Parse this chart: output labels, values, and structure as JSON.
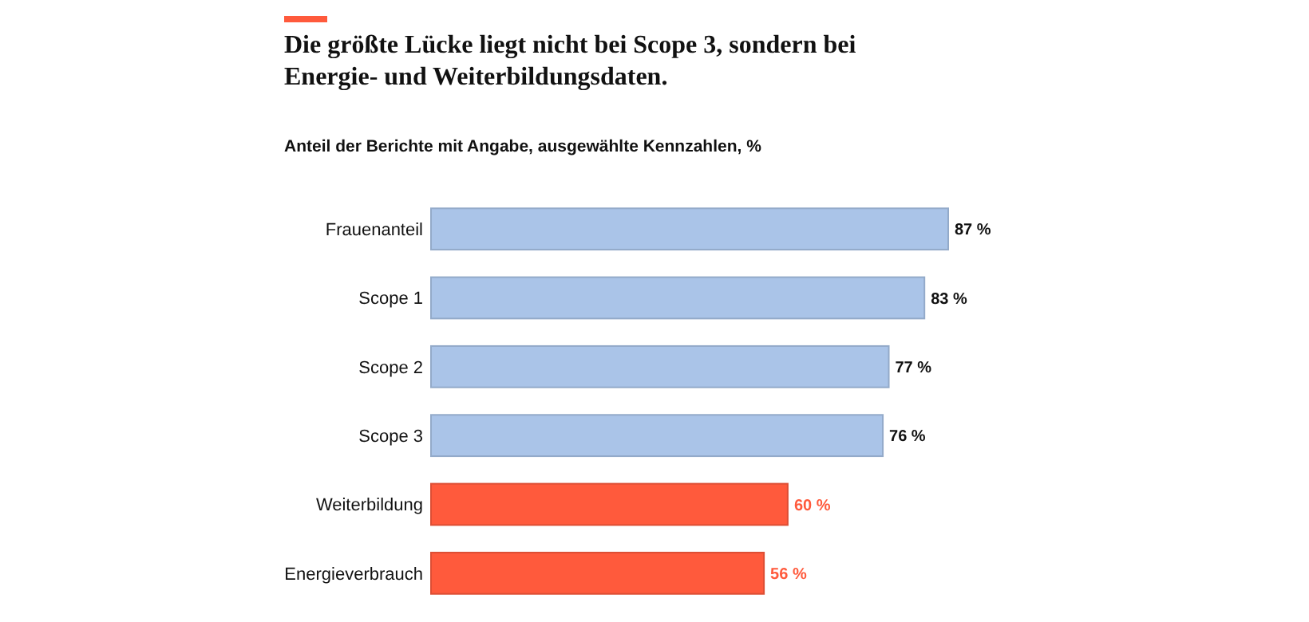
{
  "chart_data": {
    "type": "bar",
    "orientation": "horizontal",
    "title": "Die größte Lücke liegt nicht bei Scope 3, sondern bei Energie- und Weiterbildungsdaten.",
    "subtitle": "Anteil der Berichte mit Angabe, ausgewählte Kennzahlen, %",
    "categories": [
      "Frauenanteil",
      "Scope 1",
      "Scope 2",
      "Scope 3",
      "Weiterbildung",
      "Energieverbrauch"
    ],
    "values": [
      87,
      83,
      77,
      76,
      60,
      56
    ],
    "colors": [
      "#aac4e8",
      "#aac4e8",
      "#aac4e8",
      "#aac4e8",
      "#ff5a3c",
      "#ff5a3c"
    ],
    "value_labels": [
      "87 %",
      "83 %",
      "77 %",
      "76 %",
      "60 %",
      "56 %"
    ],
    "data_labels": true
  }
}
